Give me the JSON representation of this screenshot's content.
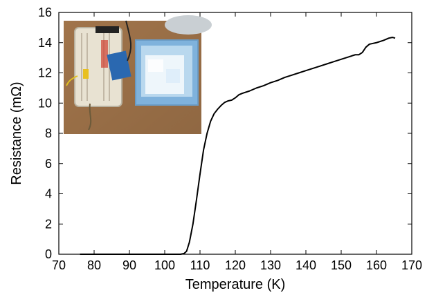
{
  "chart_data": {
    "type": "line",
    "xlabel": "Temperature (K)",
    "ylabel": "Resistance (mΩ)",
    "xlim": [
      70,
      170
    ],
    "ylim": [
      0,
      16
    ],
    "xticks": [
      70,
      80,
      90,
      100,
      110,
      120,
      130,
      140,
      150,
      160,
      170
    ],
    "yticks": [
      0,
      2,
      4,
      6,
      8,
      10,
      12,
      14,
      16
    ],
    "grid": false,
    "series": [
      {
        "color": "#000000",
        "points": [
          [
            76,
            0.0
          ],
          [
            90,
            0.0
          ],
          [
            100,
            0.0
          ],
          [
            104.5,
            0.0
          ],
          [
            105.5,
            0.05
          ],
          [
            106.2,
            0.2
          ],
          [
            107,
            0.8
          ],
          [
            108,
            2.0
          ],
          [
            109,
            3.6
          ],
          [
            110,
            5.3
          ],
          [
            111,
            6.9
          ],
          [
            112,
            8.0
          ],
          [
            113,
            8.8
          ],
          [
            114,
            9.3
          ],
          [
            115,
            9.6
          ],
          [
            116,
            9.85
          ],
          [
            117,
            10.05
          ],
          [
            118,
            10.15
          ],
          [
            119,
            10.2
          ],
          [
            120,
            10.35
          ],
          [
            121,
            10.55
          ],
          [
            122,
            10.65
          ],
          [
            124,
            10.8
          ],
          [
            126,
            11.0
          ],
          [
            128,
            11.15
          ],
          [
            130,
            11.35
          ],
          [
            132,
            11.5
          ],
          [
            134,
            11.7
          ],
          [
            136,
            11.85
          ],
          [
            138,
            12.0
          ],
          [
            140,
            12.15
          ],
          [
            142,
            12.3
          ],
          [
            144,
            12.45
          ],
          [
            146,
            12.6
          ],
          [
            148,
            12.75
          ],
          [
            150,
            12.9
          ],
          [
            152,
            13.05
          ],
          [
            154,
            13.2
          ],
          [
            155,
            13.2
          ],
          [
            156,
            13.35
          ],
          [
            157,
            13.7
          ],
          [
            158,
            13.9
          ],
          [
            160,
            14.0
          ],
          [
            162,
            14.15
          ],
          [
            163.5,
            14.3
          ],
          [
            164.5,
            14.35
          ],
          [
            165.3,
            14.3
          ]
        ]
      }
    ]
  },
  "inset_photo": {
    "icon": "lab-setup-photo",
    "colors": {
      "table": "#a97a4e",
      "cooler": "#7fb2dc",
      "ice": "#eef6fb",
      "breadboard": "#e8e2d2",
      "arduino": "#2a68b0"
    }
  }
}
